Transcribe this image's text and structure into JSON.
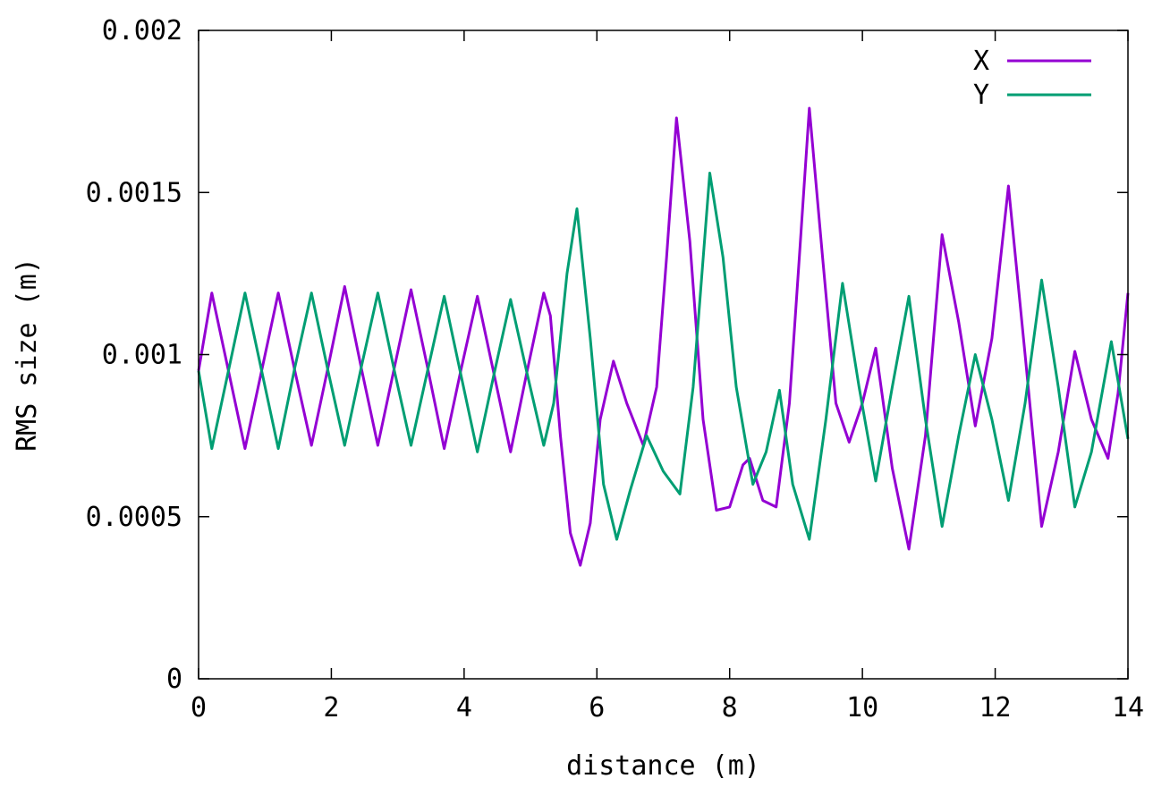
{
  "chart_data": {
    "type": "line",
    "title": "",
    "xlabel": "distance (m)",
    "ylabel": "RMS size (m)",
    "xlim": [
      0,
      14
    ],
    "ylim": [
      0,
      0.002
    ],
    "x_ticks": [
      "0",
      "2",
      "4",
      "6",
      "8",
      "10",
      "12",
      "14"
    ],
    "y_ticks": [
      "0",
      "0.0005",
      "0.001",
      "0.0015",
      "0.002"
    ],
    "grid": false,
    "legend_position": "top-right",
    "series": [
      {
        "name": "X",
        "color": "#9400d3",
        "points": [
          [
            0.0,
            0.00095
          ],
          [
            0.2,
            0.00119
          ],
          [
            0.45,
            0.00095
          ],
          [
            0.7,
            0.00071
          ],
          [
            0.95,
            0.00095
          ],
          [
            1.2,
            0.00119
          ],
          [
            1.45,
            0.00095
          ],
          [
            1.7,
            0.00072
          ],
          [
            1.95,
            0.00096
          ],
          [
            2.2,
            0.00121
          ],
          [
            2.45,
            0.00096
          ],
          [
            2.7,
            0.00072
          ],
          [
            2.95,
            0.00096
          ],
          [
            3.2,
            0.0012
          ],
          [
            3.45,
            0.00096
          ],
          [
            3.7,
            0.00071
          ],
          [
            3.95,
            0.00095
          ],
          [
            4.2,
            0.00118
          ],
          [
            4.45,
            0.00094
          ],
          [
            4.7,
            0.0007
          ],
          [
            4.95,
            0.00095
          ],
          [
            5.2,
            0.00119
          ],
          [
            5.3,
            0.00112
          ],
          [
            5.45,
            0.00075
          ],
          [
            5.6,
            0.00045
          ],
          [
            5.75,
            0.00035
          ],
          [
            5.9,
            0.00048
          ],
          [
            6.05,
            0.0008
          ],
          [
            6.25,
            0.00098
          ],
          [
            6.45,
            0.00085
          ],
          [
            6.7,
            0.00072
          ],
          [
            6.9,
            0.0009
          ],
          [
            7.05,
            0.0013
          ],
          [
            7.2,
            0.00173
          ],
          [
            7.4,
            0.00135
          ],
          [
            7.6,
            0.0008
          ],
          [
            7.8,
            0.00052
          ],
          [
            8.0,
            0.00053
          ],
          [
            8.2,
            0.00066
          ],
          [
            8.3,
            0.00068
          ],
          [
            8.5,
            0.00055
          ],
          [
            8.7,
            0.00053
          ],
          [
            8.9,
            0.00085
          ],
          [
            9.05,
            0.0013
          ],
          [
            9.2,
            0.00176
          ],
          [
            9.4,
            0.0013
          ],
          [
            9.6,
            0.00085
          ],
          [
            9.8,
            0.00073
          ],
          [
            10.0,
            0.00085
          ],
          [
            10.2,
            0.00102
          ],
          [
            10.45,
            0.00065
          ],
          [
            10.7,
            0.0004
          ],
          [
            10.95,
            0.00075
          ],
          [
            11.2,
            0.00137
          ],
          [
            11.45,
            0.0011
          ],
          [
            11.7,
            0.00078
          ],
          [
            11.95,
            0.00105
          ],
          [
            12.2,
            0.00152
          ],
          [
            12.45,
            0.001
          ],
          [
            12.7,
            0.00047
          ],
          [
            12.95,
            0.0007
          ],
          [
            13.2,
            0.00101
          ],
          [
            13.45,
            0.0008
          ],
          [
            13.7,
            0.00068
          ],
          [
            13.85,
            0.00088
          ],
          [
            14.0,
            0.00119
          ]
        ]
      },
      {
        "name": "Y",
        "color": "#009e73",
        "points": [
          [
            0.0,
            0.00095
          ],
          [
            0.2,
            0.00071
          ],
          [
            0.45,
            0.00095
          ],
          [
            0.7,
            0.00119
          ],
          [
            0.95,
            0.00095
          ],
          [
            1.2,
            0.00071
          ],
          [
            1.45,
            0.00096
          ],
          [
            1.7,
            0.00119
          ],
          [
            1.95,
            0.00095
          ],
          [
            2.2,
            0.00072
          ],
          [
            2.45,
            0.00096
          ],
          [
            2.7,
            0.00119
          ],
          [
            2.95,
            0.00095
          ],
          [
            3.2,
            0.00072
          ],
          [
            3.45,
            0.00095
          ],
          [
            3.7,
            0.00118
          ],
          [
            3.95,
            0.00094
          ],
          [
            4.2,
            0.0007
          ],
          [
            4.45,
            0.00094
          ],
          [
            4.7,
            0.00117
          ],
          [
            4.95,
            0.00094
          ],
          [
            5.2,
            0.00072
          ],
          [
            5.35,
            0.00085
          ],
          [
            5.55,
            0.00125
          ],
          [
            5.7,
            0.00145
          ],
          [
            5.9,
            0.00105
          ],
          [
            6.1,
            0.0006
          ],
          [
            6.3,
            0.00043
          ],
          [
            6.5,
            0.00058
          ],
          [
            6.75,
            0.00075
          ],
          [
            7.0,
            0.00064
          ],
          [
            7.25,
            0.00057
          ],
          [
            7.45,
            0.0009
          ],
          [
            7.7,
            0.00156
          ],
          [
            7.9,
            0.0013
          ],
          [
            8.1,
            0.0009
          ],
          [
            8.35,
            0.0006
          ],
          [
            8.55,
            0.0007
          ],
          [
            8.75,
            0.00089
          ],
          [
            8.95,
            0.0006
          ],
          [
            9.2,
            0.00043
          ],
          [
            9.45,
            0.0008
          ],
          [
            9.7,
            0.00122
          ],
          [
            9.95,
            0.0009
          ],
          [
            10.2,
            0.00061
          ],
          [
            10.45,
            0.0009
          ],
          [
            10.7,
            0.00118
          ],
          [
            10.95,
            0.0008
          ],
          [
            11.2,
            0.00047
          ],
          [
            11.45,
            0.00075
          ],
          [
            11.7,
            0.001
          ],
          [
            11.95,
            0.0008
          ],
          [
            12.2,
            0.00055
          ],
          [
            12.45,
            0.00085
          ],
          [
            12.7,
            0.00123
          ],
          [
            12.95,
            0.0009
          ],
          [
            13.2,
            0.00053
          ],
          [
            13.45,
            0.0007
          ],
          [
            13.75,
            0.00104
          ],
          [
            14.0,
            0.00074
          ]
        ]
      }
    ]
  }
}
